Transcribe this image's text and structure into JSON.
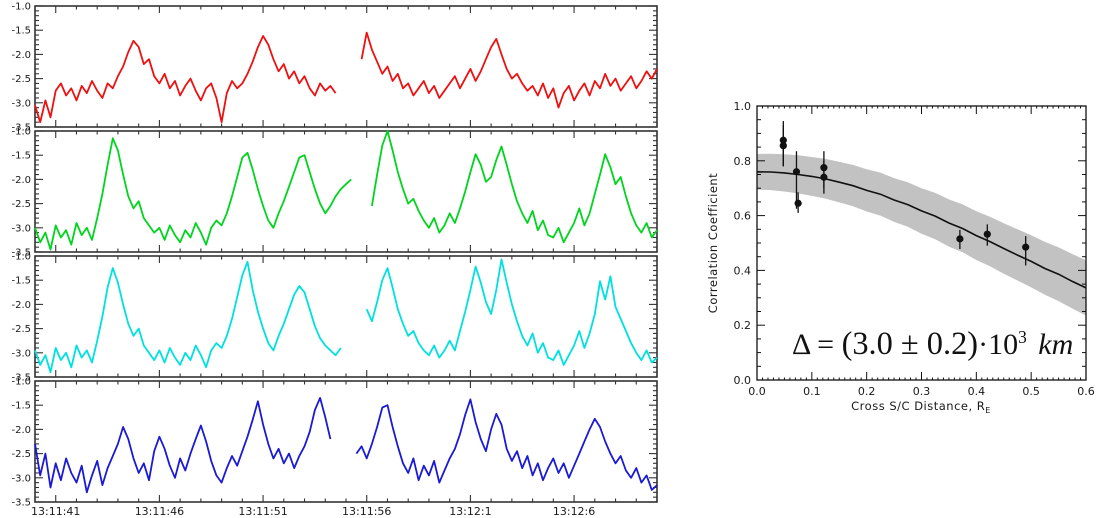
{
  "page": {
    "background": "#ffffff",
    "frame_color": "#333333",
    "label_color": "#1a1a1a"
  },
  "chart_data": [
    {
      "type": "line",
      "description": "Four stacked spacecraft time-series panels (log amplitude vs time)",
      "x_start_label": "13:11:40",
      "x_end_label": "13:12:10",
      "dt_s": 0.25,
      "x_ticks": [
        {
          "t": 1,
          "label": "13:11:41"
        },
        {
          "t": 6,
          "label": "13:11:46"
        },
        {
          "t": 11,
          "label": "13:11:51"
        },
        {
          "t": 16,
          "label": "13:11:56"
        },
        {
          "t": 21,
          "label": "13:12:1"
        },
        {
          "t": 26,
          "label": "13:12:6"
        }
      ],
      "x_minor_step_s": 1,
      "ylim": [
        -3.5,
        -1.0
      ],
      "y_ticks": [
        {
          "v": -1.0,
          "label": "-1.0"
        },
        {
          "v": -1.5,
          "label": "-1.5"
        },
        {
          "v": -2.0,
          "label": "-2.0"
        },
        {
          "v": -2.5,
          "label": "-2.5"
        },
        {
          "v": -3.0,
          "label": "-3.0"
        },
        {
          "v": -3.5,
          "label": "-3.5"
        }
      ],
      "y_minor_step": 0.1,
      "grid": false,
      "series": [
        {
          "name": "panel-1-red",
          "color": "#ee1010",
          "values": [
            -3.05,
            -3.4,
            -2.95,
            -3.3,
            -2.75,
            -2.6,
            -2.85,
            -2.7,
            -2.95,
            -2.65,
            -2.8,
            -2.55,
            -2.75,
            -2.9,
            -2.6,
            -2.7,
            -2.45,
            -2.25,
            -1.95,
            -1.72,
            -1.85,
            -2.2,
            -2.1,
            -2.45,
            -2.6,
            -2.4,
            -2.7,
            -2.55,
            -2.85,
            -2.65,
            -2.5,
            -2.75,
            -2.95,
            -2.7,
            -2.6,
            -2.9,
            -3.4,
            -2.8,
            -2.55,
            -2.7,
            -2.6,
            -2.4,
            -2.15,
            -1.85,
            -1.62,
            -1.8,
            -2.1,
            -2.35,
            -2.2,
            -2.5,
            -2.35,
            -2.6,
            -2.45,
            -2.7,
            -2.85,
            -2.6,
            -2.75,
            -2.65,
            -2.8,
            null,
            null,
            null,
            null,
            -2.1,
            -1.55,
            -1.9,
            -2.15,
            -2.4,
            -2.25,
            -2.55,
            -2.4,
            -2.7,
            -2.6,
            -2.85,
            -2.7,
            -2.55,
            -2.8,
            -2.65,
            -2.9,
            -2.75,
            -2.6,
            -2.45,
            -2.7,
            -2.5,
            -2.3,
            -2.55,
            -2.35,
            -2.1,
            -1.85,
            -1.68,
            -2.0,
            -2.3,
            -2.5,
            -2.4,
            -2.6,
            -2.75,
            -2.65,
            -2.85,
            -2.6,
            -2.9,
            -2.7,
            -3.1,
            -2.8,
            -2.65,
            -2.95,
            -2.75,
            -2.6,
            -2.85,
            -2.55,
            -2.7,
            -2.4,
            -2.65,
            -2.5,
            -2.75,
            -2.6,
            -2.45,
            -2.7,
            -2.55,
            -2.35,
            -2.5,
            -2.3
          ]
        },
        {
          "name": "panel-2-green",
          "color": "#00d41e",
          "values": [
            -3.0,
            -3.3,
            -3.1,
            -3.45,
            -2.95,
            -3.2,
            -3.05,
            -3.35,
            -2.9,
            -3.15,
            -3.0,
            -3.25,
            -2.8,
            -2.3,
            -1.7,
            -1.15,
            -1.4,
            -1.9,
            -2.35,
            -2.6,
            -2.45,
            -2.8,
            -2.95,
            -3.1,
            -3.0,
            -3.25,
            -2.95,
            -3.15,
            -3.3,
            -3.05,
            -3.2,
            -2.9,
            -3.1,
            -3.35,
            -3.0,
            -2.85,
            -2.95,
            -2.7,
            -2.35,
            -1.95,
            -1.55,
            -1.45,
            -1.8,
            -2.2,
            -2.55,
            -2.85,
            -3.0,
            -2.7,
            -2.45,
            -2.15,
            -1.85,
            -1.55,
            -1.5,
            -1.85,
            -2.2,
            -2.5,
            -2.7,
            -2.55,
            -2.35,
            -2.2,
            -2.1,
            -2.0,
            null,
            null,
            null,
            -2.55,
            -1.9,
            -1.3,
            -0.97,
            -1.4,
            -1.85,
            -2.2,
            -2.5,
            -2.4,
            -2.65,
            -2.85,
            -3.0,
            -2.8,
            -3.1,
            -2.95,
            -2.7,
            -2.9,
            -2.6,
            -2.25,
            -1.85,
            -1.48,
            -1.7,
            -2.05,
            -1.95,
            -1.6,
            -1.32,
            -1.7,
            -2.1,
            -2.45,
            -2.7,
            -2.9,
            -2.65,
            -3.05,
            -2.85,
            -3.15,
            -3.2,
            -3.0,
            -3.3,
            -3.1,
            -2.9,
            -2.6,
            -2.95,
            -2.7,
            -2.3,
            -1.9,
            -1.48,
            -1.75,
            -2.1,
            -1.95,
            -2.35,
            -2.7,
            -2.95,
            -3.1,
            -2.9,
            -3.2,
            -3.05
          ]
        },
        {
          "name": "panel-3-cyan",
          "color": "#00e0e0",
          "values": [
            -2.95,
            -3.25,
            -3.05,
            -3.4,
            -2.9,
            -3.15,
            -3.0,
            -3.3,
            -2.85,
            -3.1,
            -2.95,
            -3.2,
            -2.75,
            -2.25,
            -1.65,
            -1.25,
            -1.55,
            -2.0,
            -2.4,
            -2.65,
            -2.5,
            -2.85,
            -3.0,
            -3.15,
            -2.95,
            -3.2,
            -2.9,
            -3.1,
            -3.25,
            -3.0,
            -3.15,
            -2.85,
            -3.05,
            -3.3,
            -2.95,
            -2.8,
            -2.9,
            -2.65,
            -2.3,
            -1.85,
            -1.4,
            -1.12,
            -1.7,
            -2.15,
            -2.5,
            -2.8,
            -2.95,
            -2.65,
            -2.4,
            -2.1,
            -1.8,
            -1.62,
            -1.75,
            -2.1,
            -2.45,
            -2.7,
            -2.85,
            -2.95,
            -3.05,
            -2.9,
            null,
            null,
            null,
            null,
            -2.1,
            -2.35,
            -1.95,
            -1.5,
            -1.25,
            -1.65,
            -2.1,
            -2.4,
            -2.65,
            -2.55,
            -2.8,
            -2.95,
            -3.05,
            -2.85,
            -3.1,
            -2.95,
            -2.75,
            -2.95,
            -2.55,
            -2.15,
            -1.7,
            -1.22,
            -1.55,
            -1.95,
            -2.2,
            -1.7,
            -1.07,
            -1.55,
            -2.0,
            -2.35,
            -2.65,
            -2.85,
            -2.6,
            -3.0,
            -2.8,
            -3.1,
            -3.15,
            -2.95,
            -3.25,
            -3.05,
            -2.85,
            -2.55,
            -2.9,
            -2.6,
            -2.2,
            -1.52,
            -1.9,
            -1.42,
            -2.05,
            -2.3,
            -2.55,
            -2.8,
            -3.0,
            -3.15,
            -2.95,
            -3.2,
            -3.1
          ]
        },
        {
          "name": "panel-4-blue",
          "color": "#1a1ad6",
          "values": [
            -2.3,
            -2.95,
            -2.5,
            -3.2,
            -2.7,
            -3.05,
            -2.6,
            -2.9,
            -3.1,
            -2.75,
            -3.3,
            -2.95,
            -2.65,
            -3.15,
            -2.8,
            -2.55,
            -2.3,
            -1.95,
            -2.2,
            -2.6,
            -2.9,
            -2.7,
            -3.05,
            -2.45,
            -2.15,
            -2.4,
            -2.75,
            -3.0,
            -2.6,
            -2.85,
            -2.5,
            -2.2,
            -1.92,
            -2.25,
            -2.65,
            -2.95,
            -3.1,
            -2.8,
            -2.55,
            -2.75,
            -2.45,
            -2.15,
            -1.8,
            -1.42,
            -1.9,
            -2.3,
            -2.6,
            -2.4,
            -2.7,
            -2.5,
            -2.8,
            -2.55,
            -2.35,
            -2.05,
            -1.6,
            -1.35,
            -1.75,
            -2.2,
            null,
            null,
            null,
            null,
            -2.5,
            -2.35,
            -2.6,
            -2.3,
            -1.95,
            -1.55,
            -1.5,
            -1.95,
            -2.35,
            -2.7,
            -2.9,
            -2.6,
            -3.05,
            -2.75,
            -2.95,
            -2.65,
            -3.1,
            -2.85,
            -2.6,
            -2.4,
            -2.1,
            -1.7,
            -1.38,
            -1.85,
            -2.2,
            -2.45,
            -2.0,
            -1.68,
            -1.9,
            -2.4,
            -2.65,
            -2.45,
            -2.8,
            -2.55,
            -2.95,
            -2.7,
            -3.05,
            -2.8,
            -2.6,
            -2.9,
            -2.7,
            -3.0,
            -2.75,
            -2.5,
            -2.25,
            -2.0,
            -1.78,
            -1.95,
            -2.25,
            -2.5,
            -2.7,
            -2.55,
            -2.85,
            -3.0,
            -2.8,
            -3.1,
            -2.95,
            -3.25,
            -3.15
          ]
        }
      ]
    },
    {
      "type": "scatter",
      "title": "",
      "xlabel": "Cross S/C Distance, R",
      "xlabel_sub": "E",
      "ylabel": "Correlation Coefficient",
      "xlim": [
        0.0,
        0.6
      ],
      "ylim": [
        0.0,
        1.0
      ],
      "x_ticks": [
        {
          "v": 0.0,
          "label": "0.0"
        },
        {
          "v": 0.1,
          "label": "0.1"
        },
        {
          "v": 0.2,
          "label": "0.2"
        },
        {
          "v": 0.3,
          "label": "0.3"
        },
        {
          "v": 0.4,
          "label": "0.4"
        },
        {
          "v": 0.5,
          "label": "0.5"
        },
        {
          "v": 0.6,
          "label": "0.6"
        }
      ],
      "x_minor_step": 0.01,
      "y_ticks": [
        {
          "v": 0.0,
          "label": "0.0"
        },
        {
          "v": 0.2,
          "label": "0.2"
        },
        {
          "v": 0.4,
          "label": "0.4"
        },
        {
          "v": 0.6,
          "label": "0.6"
        },
        {
          "v": 0.8,
          "label": "0.8"
        },
        {
          "v": 1.0,
          "label": "1.0"
        }
      ],
      "y_minor_step": 0.05,
      "point_color": "#111111",
      "band_color": "#c2c2c2",
      "curve_color": "#111111",
      "points": [
        {
          "x": 0.048,
          "y": 0.875,
          "err_lo": 0.78,
          "err_hi": 0.945
        },
        {
          "x": 0.048,
          "y": 0.855,
          "err_lo": 0.78,
          "err_hi": 0.93
        },
        {
          "x": 0.072,
          "y": 0.76,
          "err_lo": 0.625,
          "err_hi": 0.835
        },
        {
          "x": 0.075,
          "y": 0.645,
          "err_lo": 0.61,
          "err_hi": 0.685
        },
        {
          "x": 0.122,
          "y": 0.775,
          "err_lo": 0.7,
          "err_hi": 0.835
        },
        {
          "x": 0.122,
          "y": 0.74,
          "err_lo": 0.68,
          "err_hi": 0.8
        },
        {
          "x": 0.37,
          "y": 0.515,
          "err_lo": 0.478,
          "err_hi": 0.548
        },
        {
          "x": 0.42,
          "y": 0.532,
          "err_lo": 0.49,
          "err_hi": 0.568
        },
        {
          "x": 0.49,
          "y": 0.485,
          "err_lo": 0.418,
          "err_hi": 0.525
        }
      ],
      "fit_x": [
        0,
        0.025,
        0.05,
        0.075,
        0.1,
        0.125,
        0.15,
        0.175,
        0.2,
        0.225,
        0.25,
        0.275,
        0.3,
        0.325,
        0.35,
        0.375,
        0.4,
        0.425,
        0.45,
        0.475,
        0.5,
        0.525,
        0.55,
        0.575,
        0.6
      ],
      "fit_y": [
        0.76,
        0.759,
        0.756,
        0.75,
        0.743,
        0.734,
        0.722,
        0.709,
        0.692,
        0.678,
        0.657,
        0.64,
        0.617,
        0.598,
        0.573,
        0.553,
        0.527,
        0.505,
        0.48,
        0.456,
        0.433,
        0.407,
        0.386,
        0.36,
        0.336
      ],
      "band_upper": [
        0.825,
        0.826,
        0.824,
        0.82,
        0.814,
        0.807,
        0.796,
        0.785,
        0.769,
        0.757,
        0.737,
        0.722,
        0.7,
        0.683,
        0.659,
        0.641,
        0.616,
        0.596,
        0.572,
        0.55,
        0.528,
        0.504,
        0.484,
        0.46,
        0.437
      ],
      "band_lower": [
        0.695,
        0.693,
        0.688,
        0.681,
        0.672,
        0.662,
        0.648,
        0.634,
        0.615,
        0.6,
        0.577,
        0.559,
        0.534,
        0.514,
        0.487,
        0.466,
        0.438,
        0.415,
        0.388,
        0.363,
        0.338,
        0.311,
        0.288,
        0.261,
        0.235
      ],
      "annotation": {
        "full_text": "Δ = (3.0 ± 0.2)·10³ km",
        "lhs": "Δ =",
        "paren": "(3.0 ± 0.2)",
        "times": "·",
        "base": "10",
        "exp": "3",
        "unit": "km"
      }
    }
  ]
}
